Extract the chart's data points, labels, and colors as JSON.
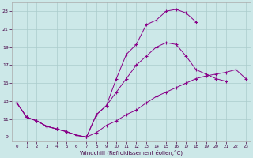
{
  "bg_color": "#cce8e8",
  "line_color": "#880088",
  "grid_color": "#aacccc",
  "xlabel": "Windchill (Refroidissement éolien,°C)",
  "xlim": [
    -0.5,
    23.5
  ],
  "ylim": [
    8.5,
    24.0
  ],
  "yticks": [
    9,
    11,
    13,
    15,
    17,
    19,
    21,
    23
  ],
  "xticks": [
    0,
    1,
    2,
    3,
    4,
    5,
    6,
    7,
    8,
    9,
    10,
    11,
    12,
    13,
    14,
    15,
    16,
    17,
    18,
    19,
    20,
    21,
    22,
    23
  ],
  "line1_x": [
    0,
    1,
    2,
    3,
    4,
    5,
    6,
    7,
    8,
    9,
    10,
    11,
    12,
    13,
    14,
    15,
    16,
    17,
    18,
    19,
    20,
    21,
    22,
    23
  ],
  "line1_y": [
    12.8,
    11.2,
    10.8,
    10.2,
    9.9,
    9.6,
    9.2,
    9.0,
    11.5,
    12.5,
    15.5,
    18.2,
    19.3,
    21.5,
    22.0,
    23.0,
    23.2,
    22.8,
    21.8,
    null,
    null,
    null,
    null,
    null
  ],
  "line2_x": [
    0,
    1,
    2,
    3,
    4,
    5,
    6,
    7,
    8,
    9,
    10,
    11,
    12,
    13,
    14,
    15,
    16,
    17,
    18,
    19,
    20,
    21,
    22,
    23
  ],
  "line2_y": [
    12.8,
    11.2,
    10.8,
    10.2,
    9.9,
    9.6,
    9.2,
    9.0,
    11.5,
    12.5,
    14.0,
    15.5,
    17.0,
    18.0,
    19.0,
    19.5,
    19.3,
    18.0,
    16.5,
    16.0,
    15.5,
    15.2,
    null,
    null
  ],
  "line3_x": [
    0,
    1,
    2,
    3,
    4,
    5,
    6,
    7,
    8,
    9,
    10,
    11,
    12,
    13,
    14,
    15,
    16,
    17,
    18,
    19,
    20,
    21,
    22,
    23
  ],
  "line3_y": [
    12.8,
    11.2,
    10.8,
    10.2,
    9.9,
    9.6,
    9.2,
    9.0,
    9.5,
    10.3,
    10.8,
    11.5,
    12.0,
    12.8,
    13.5,
    14.0,
    14.5,
    15.0,
    15.5,
    15.8,
    16.0,
    16.2,
    16.5,
    15.5
  ]
}
